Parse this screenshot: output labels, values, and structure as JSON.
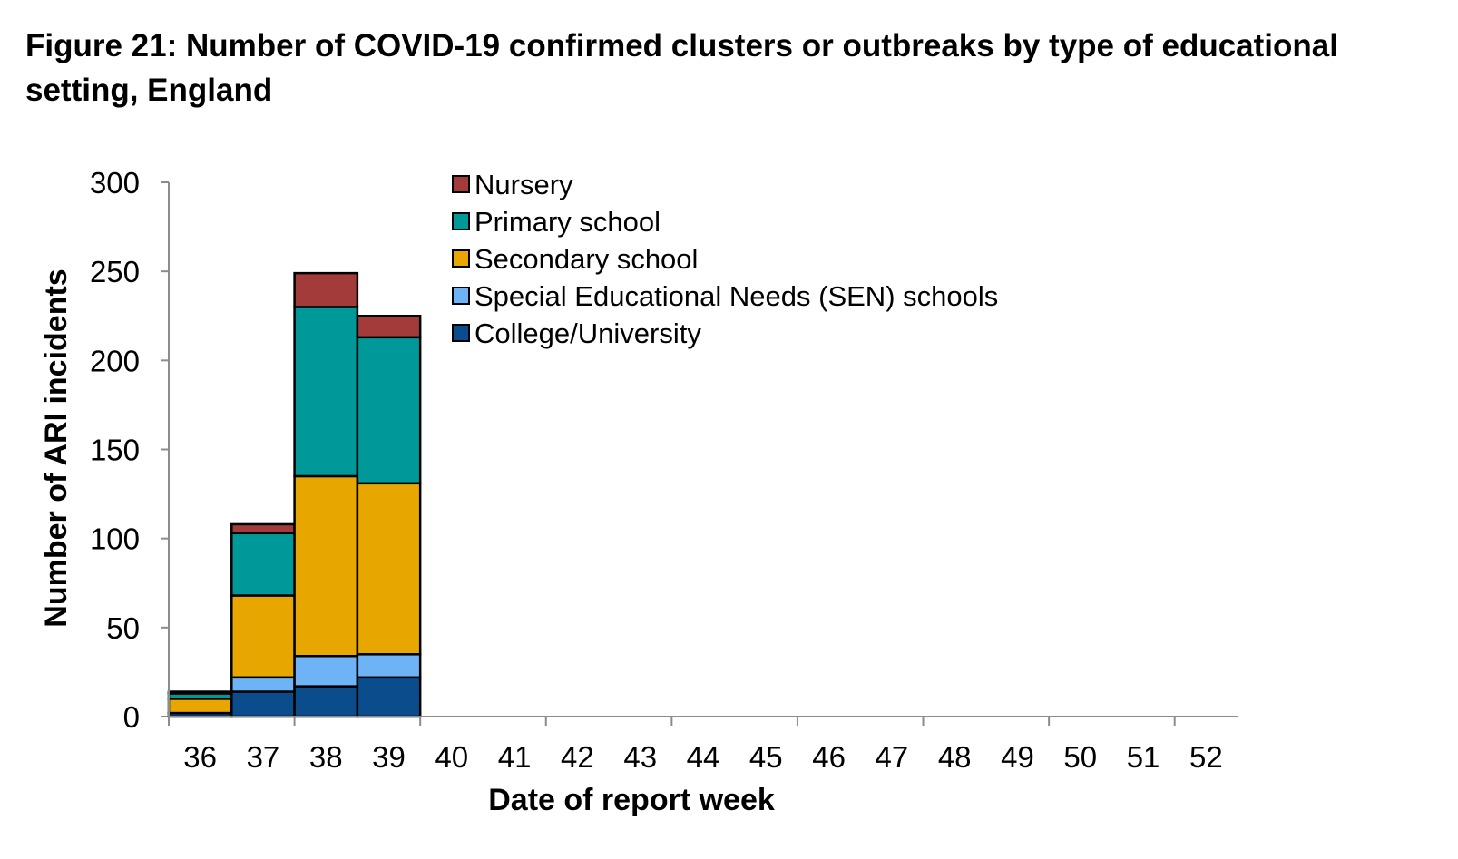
{
  "title": "Figure 21: Number of COVID-19 confirmed clusters or outbreaks by type of educational setting, England",
  "chart_data": {
    "type": "bar",
    "stacked": true,
    "title": "Figure 21: Number of COVID-19 confirmed clusters or outbreaks by type of educational setting, England",
    "xlabel": "Date of report week",
    "ylabel": "Number of ARI incidents",
    "ylim": [
      0,
      300
    ],
    "yticks": [
      0,
      50,
      100,
      150,
      200,
      250,
      300
    ],
    "categories": [
      "36",
      "37",
      "38",
      "39",
      "40",
      "41",
      "42",
      "43",
      "44",
      "45",
      "46",
      "47",
      "48",
      "49",
      "50",
      "51",
      "52"
    ],
    "series": [
      {
        "name": "College/University",
        "color": "#0B4C8C",
        "values": [
          2,
          14,
          17,
          22,
          0,
          0,
          0,
          0,
          0,
          0,
          0,
          0,
          0,
          0,
          0,
          0,
          0
        ]
      },
      {
        "name": "Special Educational Needs (SEN) schools",
        "color": "#6FB3F7",
        "values": [
          0,
          8,
          17,
          13,
          0,
          0,
          0,
          0,
          0,
          0,
          0,
          0,
          0,
          0,
          0,
          0,
          0
        ]
      },
      {
        "name": "Secondary school",
        "color": "#E8A700",
        "values": [
          8,
          46,
          101,
          96,
          0,
          0,
          0,
          0,
          0,
          0,
          0,
          0,
          0,
          0,
          0,
          0,
          0
        ]
      },
      {
        "name": "Primary school",
        "color": "#00999A",
        "values": [
          3,
          35,
          95,
          82,
          0,
          0,
          0,
          0,
          0,
          0,
          0,
          0,
          0,
          0,
          0,
          0,
          0
        ]
      },
      {
        "name": "Nursery",
        "color": "#A33B3B",
        "values": [
          1,
          5,
          19,
          12,
          0,
          0,
          0,
          0,
          0,
          0,
          0,
          0,
          0,
          0,
          0,
          0,
          0
        ]
      }
    ],
    "legend": {
      "position": "top-right",
      "order": [
        "Nursery",
        "Primary school",
        "Secondary school",
        "Special Educational Needs (SEN) schools",
        "College/University"
      ]
    },
    "grid": false
  }
}
